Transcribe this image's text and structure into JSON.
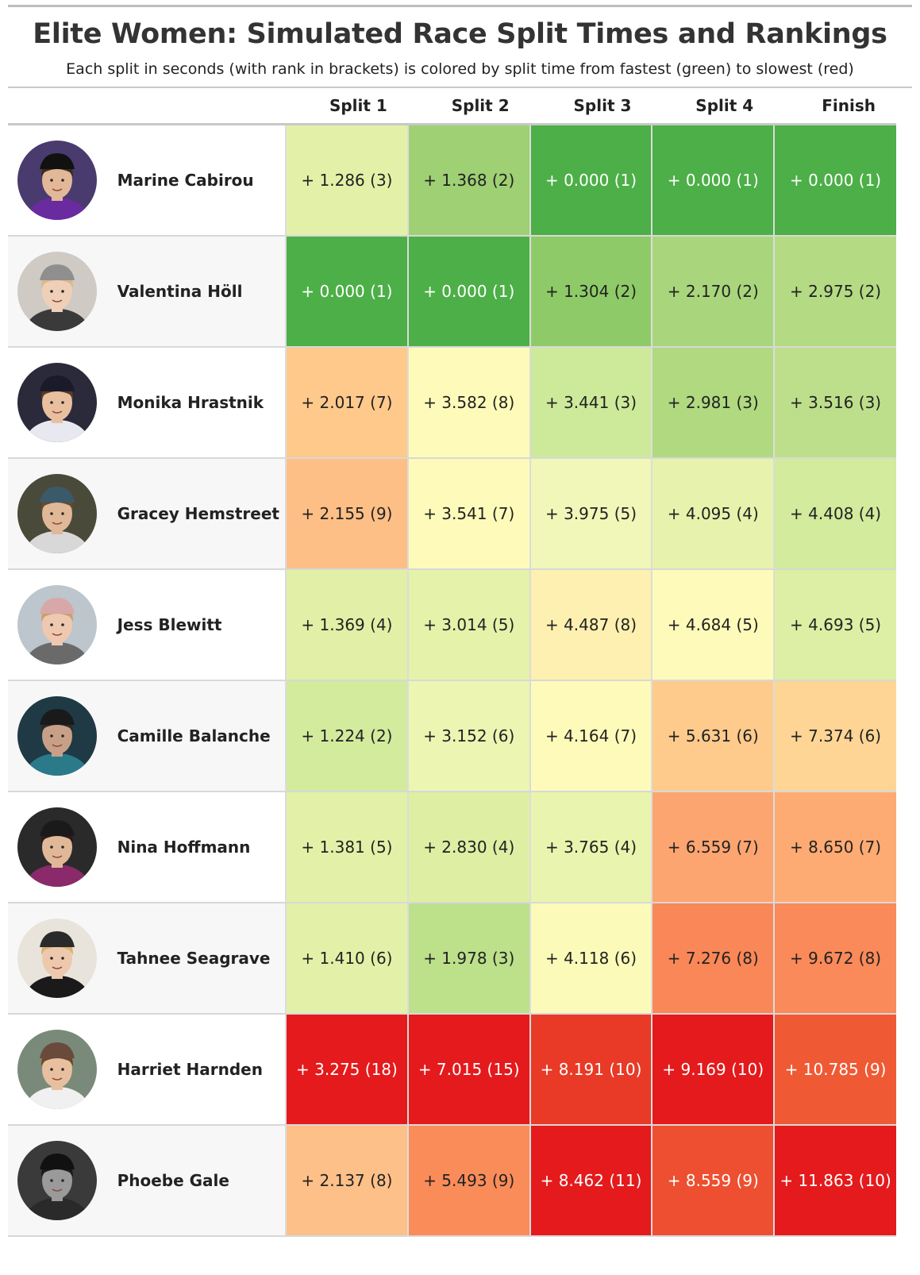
{
  "title": "Elite Women: Simulated Race Split Times and Rankings",
  "subtitle": "Each split in seconds (with rank in brackets) is colored by split time from fastest (green) to slowest (red)",
  "chart_data": {
    "type": "table",
    "columns": [
      "Split 1",
      "Split 2",
      "Split 3",
      "Split 4",
      "Finish"
    ],
    "rows": [
      {
        "name": "Marine Cabirou",
        "avatar": {
          "bg": "#4a3b6e",
          "skin": "#e2b898",
          "hair": "#3a2a20",
          "top": "#6a2aa0",
          "cap": "#111111"
        },
        "cells": [
          {
            "text": "+ 1.286 (3)",
            "value": 1.286,
            "rank": 3,
            "color": "#e3f1a8",
            "fg": "#222222"
          },
          {
            "text": "+ 1.368 (2)",
            "value": 1.368,
            "rank": 2,
            "color": "#9fd074",
            "fg": "#222222"
          },
          {
            "text": "+ 0.000 (1)",
            "value": 0.0,
            "rank": 1,
            "color": "#4caf47",
            "fg": "#ffffff"
          },
          {
            "text": "+ 0.000 (1)",
            "value": 0.0,
            "rank": 1,
            "color": "#4caf47",
            "fg": "#ffffff"
          },
          {
            "text": "+ 0.000 (1)",
            "value": 0.0,
            "rank": 1,
            "color": "#4caf47",
            "fg": "#ffffff"
          }
        ]
      },
      {
        "name": "Valentina Höll",
        "avatar": {
          "bg": "#cfcac4",
          "skin": "#efcfb8",
          "hair": "#d9b98a",
          "top": "#3a3a3a",
          "cap": "#8f8f8f"
        },
        "cells": [
          {
            "text": "+ 0.000 (1)",
            "value": 0.0,
            "rank": 1,
            "color": "#4caf47",
            "fg": "#ffffff"
          },
          {
            "text": "+ 0.000 (1)",
            "value": 0.0,
            "rank": 1,
            "color": "#4caf47",
            "fg": "#ffffff"
          },
          {
            "text": "+ 1.304 (2)",
            "value": 1.304,
            "rank": 2,
            "color": "#8ecb68",
            "fg": "#222222"
          },
          {
            "text": "+ 2.170 (2)",
            "value": 2.17,
            "rank": 2,
            "color": "#a9d67c",
            "fg": "#222222"
          },
          {
            "text": "+ 2.975 (2)",
            "value": 2.975,
            "rank": 2,
            "color": "#b4db84",
            "fg": "#222222"
          }
        ]
      },
      {
        "name": "Monika Hrastnik",
        "avatar": {
          "bg": "#2a2a3a",
          "skin": "#e8c0a0",
          "hair": "#5a3a20",
          "top": "#e8e8f0",
          "cap": "#1a1a2a"
        },
        "cells": [
          {
            "text": "+ 2.017 (7)",
            "value": 2.017,
            "rank": 7,
            "color": "#fec98b",
            "fg": "#222222"
          },
          {
            "text": "+ 3.582 (8)",
            "value": 3.582,
            "rank": 8,
            "color": "#fefbba",
            "fg": "#222222"
          },
          {
            "text": "+ 3.441 (3)",
            "value": 3.441,
            "rank": 3,
            "color": "#cde99a",
            "fg": "#222222"
          },
          {
            "text": "+ 2.981 (3)",
            "value": 2.981,
            "rank": 3,
            "color": "#b0d980",
            "fg": "#222222"
          },
          {
            "text": "+ 3.516 (3)",
            "value": 3.516,
            "rank": 3,
            "color": "#bddf8b",
            "fg": "#222222"
          }
        ]
      },
      {
        "name": "Gracey Hemstreet",
        "avatar": {
          "bg": "#4a4a3a",
          "skin": "#dfb898",
          "hair": "#6a4a2a",
          "top": "#d8d8d8",
          "cap": "#3a5a6a"
        },
        "cells": [
          {
            "text": "+ 2.155 (9)",
            "value": 2.155,
            "rank": 9,
            "color": "#fdbf86",
            "fg": "#222222"
          },
          {
            "text": "+ 3.541 (7)",
            "value": 3.541,
            "rank": 7,
            "color": "#fefbba",
            "fg": "#222222"
          },
          {
            "text": "+ 3.975 (5)",
            "value": 3.975,
            "rank": 5,
            "color": "#f1f7b8",
            "fg": "#222222"
          },
          {
            "text": "+ 4.095 (4)",
            "value": 4.095,
            "rank": 4,
            "color": "#e7f3ac",
            "fg": "#222222"
          },
          {
            "text": "+ 4.408 (4)",
            "value": 4.408,
            "rank": 4,
            "color": "#d2eb9c",
            "fg": "#222222"
          }
        ]
      },
      {
        "name": "Jess Blewitt",
        "avatar": {
          "bg": "#bcc6cc",
          "skin": "#efc8b0",
          "hair": "#c9a070",
          "top": "#6a6a6a",
          "cap": "#d8a8a8"
        },
        "cells": [
          {
            "text": "+ 1.369 (4)",
            "value": 1.369,
            "rank": 4,
            "color": "#e1f0a6",
            "fg": "#222222"
          },
          {
            "text": "+ 3.014 (5)",
            "value": 3.014,
            "rank": 5,
            "color": "#e5f2aa",
            "fg": "#222222"
          },
          {
            "text": "+ 4.487 (8)",
            "value": 4.487,
            "rank": 8,
            "color": "#fdf0b0",
            "fg": "#222222"
          },
          {
            "text": "+ 4.684 (5)",
            "value": 4.684,
            "rank": 5,
            "color": "#fefbba",
            "fg": "#222222"
          },
          {
            "text": "+ 4.693 (5)",
            "value": 4.693,
            "rank": 5,
            "color": "#dcefa4",
            "fg": "#222222"
          }
        ]
      },
      {
        "name": "Camille Balanche",
        "avatar": {
          "bg": "#1f3a44",
          "skin": "#c8a088",
          "hair": "#2a2a2a",
          "top": "#2a7a8a",
          "cap": "#1a1a1a"
        },
        "cells": [
          {
            "text": "+ 1.224 (2)",
            "value": 1.224,
            "rank": 2,
            "color": "#d3eb9d",
            "fg": "#222222"
          },
          {
            "text": "+ 3.152 (6)",
            "value": 3.152,
            "rank": 6,
            "color": "#ecf5b2",
            "fg": "#222222"
          },
          {
            "text": "+ 4.164 (7)",
            "value": 4.164,
            "rank": 7,
            "color": "#fefbba",
            "fg": "#222222"
          },
          {
            "text": "+ 5.631 (6)",
            "value": 5.631,
            "rank": 6,
            "color": "#fecb8c",
            "fg": "#222222"
          },
          {
            "text": "+ 7.374 (6)",
            "value": 7.374,
            "rank": 6,
            "color": "#fed595",
            "fg": "#222222"
          }
        ]
      },
      {
        "name": "Nina Hoffmann",
        "avatar": {
          "bg": "#2a2a2a",
          "skin": "#e0b898",
          "hair": "#2a1a1a",
          "top": "#8a2a6a",
          "cap": "#1a1a1a"
        },
        "cells": [
          {
            "text": "+ 1.381 (5)",
            "value": 1.381,
            "rank": 5,
            "color": "#e2f1a7",
            "fg": "#222222"
          },
          {
            "text": "+ 2.830 (4)",
            "value": 2.83,
            "rank": 4,
            "color": "#deefa4",
            "fg": "#222222"
          },
          {
            "text": "+ 3.765 (4)",
            "value": 3.765,
            "rank": 4,
            "color": "#e9f4ae",
            "fg": "#222222"
          },
          {
            "text": "+ 6.559 (7)",
            "value": 6.559,
            "rank": 7,
            "color": "#fda570",
            "fg": "#222222"
          },
          {
            "text": "+ 8.650 (7)",
            "value": 8.65,
            "rank": 7,
            "color": "#fdab73",
            "fg": "#222222"
          }
        ]
      },
      {
        "name": "Tahnee Seagrave",
        "avatar": {
          "bg": "#e8e4dc",
          "skin": "#eec8ac",
          "hair": "#d8b070",
          "top": "#1a1a1a",
          "cap": "#2a2a2a"
        },
        "cells": [
          {
            "text": "+ 1.410 (6)",
            "value": 1.41,
            "rank": 6,
            "color": "#e3f1a8",
            "fg": "#222222"
          },
          {
            "text": "+ 1.978 (3)",
            "value": 1.978,
            "rank": 3,
            "color": "#bde08b",
            "fg": "#222222"
          },
          {
            "text": "+ 4.118 (6)",
            "value": 4.118,
            "rank": 6,
            "color": "#fbfab9",
            "fg": "#222222"
          },
          {
            "text": "+ 7.276 (8)",
            "value": 7.276,
            "rank": 8,
            "color": "#fa8757",
            "fg": "#222222"
          },
          {
            "text": "+ 9.672 (8)",
            "value": 9.672,
            "rank": 8,
            "color": "#fa8a59",
            "fg": "#222222"
          }
        ]
      },
      {
        "name": "Harriet Harnden",
        "avatar": {
          "bg": "#7a8a7a",
          "skin": "#e8c0a0",
          "hair": "#6a4a2a",
          "top": "#f0f0f0",
          "cap": "#6a4a3a"
        },
        "cells": [
          {
            "text": "+ 3.275 (18)",
            "value": 3.275,
            "rank": 18,
            "color": "#e41a1c",
            "fg": "#ffffff"
          },
          {
            "text": "+ 7.015 (15)",
            "value": 7.015,
            "rank": 15,
            "color": "#e41a1c",
            "fg": "#ffffff"
          },
          {
            "text": "+ 8.191 (10)",
            "value": 8.191,
            "rank": 10,
            "color": "#e83a26",
            "fg": "#ffffff"
          },
          {
            "text": "+ 9.169 (10)",
            "value": 9.169,
            "rank": 10,
            "color": "#e41a1c",
            "fg": "#ffffff"
          },
          {
            "text": "+ 10.785 (9)",
            "value": 10.785,
            "rank": 9,
            "color": "#ef5a35",
            "fg": "#ffffff"
          }
        ]
      },
      {
        "name": "Phoebe Gale",
        "avatar": {
          "bg": "#3a3a3a",
          "skin": "#9a9a9a",
          "hair": "#1a1a1a",
          "top": "#2a2a2a",
          "cap": "#111111"
        },
        "cells": [
          {
            "text": "+ 2.137 (8)",
            "value": 2.137,
            "rank": 8,
            "color": "#fdc088",
            "fg": "#222222"
          },
          {
            "text": "+ 5.493 (9)",
            "value": 5.493,
            "rank": 9,
            "color": "#fa8c5a",
            "fg": "#222222"
          },
          {
            "text": "+ 8.462 (11)",
            "value": 8.462,
            "rank": 11,
            "color": "#e41a1c",
            "fg": "#ffffff"
          },
          {
            "text": "+ 8.559 (9)",
            "value": 8.559,
            "rank": 9,
            "color": "#ed4f30",
            "fg": "#ffffff"
          },
          {
            "text": "+ 11.863 (10)",
            "value": 11.863,
            "rank": 10,
            "color": "#e41a1c",
            "fg": "#ffffff"
          }
        ]
      }
    ]
  }
}
